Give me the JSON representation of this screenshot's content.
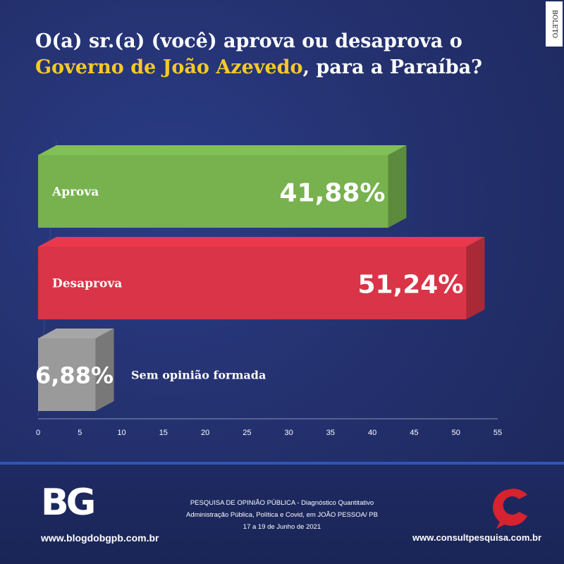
{
  "header": {
    "title_part1": "O(a) sr.(a) (você) aprova ou desaprova o ",
    "title_highlight": "Governo de João Azevedo",
    "title_part2": ", para a Paraíba?",
    "side_logo": "BOLETO"
  },
  "chart_data": {
    "type": "bar",
    "orientation": "horizontal",
    "categories": [
      "Aprova",
      "Desaprova",
      "Sem opinião formada"
    ],
    "values": [
      41.88,
      51.24,
      6.88
    ],
    "value_labels": [
      "41,88%",
      "51,24%",
      "6,88%"
    ],
    "colors": [
      "#77b24e",
      "#d93447",
      "#9a9a9a"
    ],
    "xlim": [
      0,
      55
    ],
    "xticks": [
      0,
      5,
      10,
      15,
      20,
      25,
      30,
      35,
      40,
      45,
      50,
      55
    ],
    "title": "",
    "xlabel": "",
    "ylabel": ""
  },
  "footer": {
    "logo_text": "BG",
    "site_left": "www.blogdobgpb.com.br",
    "line1": "PESQUISA DE OPINIÃO PÚBLICA - Diagnóstico Quantitativo",
    "line2": "Administração Pública, Política e Covid, em JOÃO PESSOA/ PB",
    "line3": "17 a 19 de Junho de 2021",
    "site_right": "www.consultpesquisa.com.br"
  }
}
